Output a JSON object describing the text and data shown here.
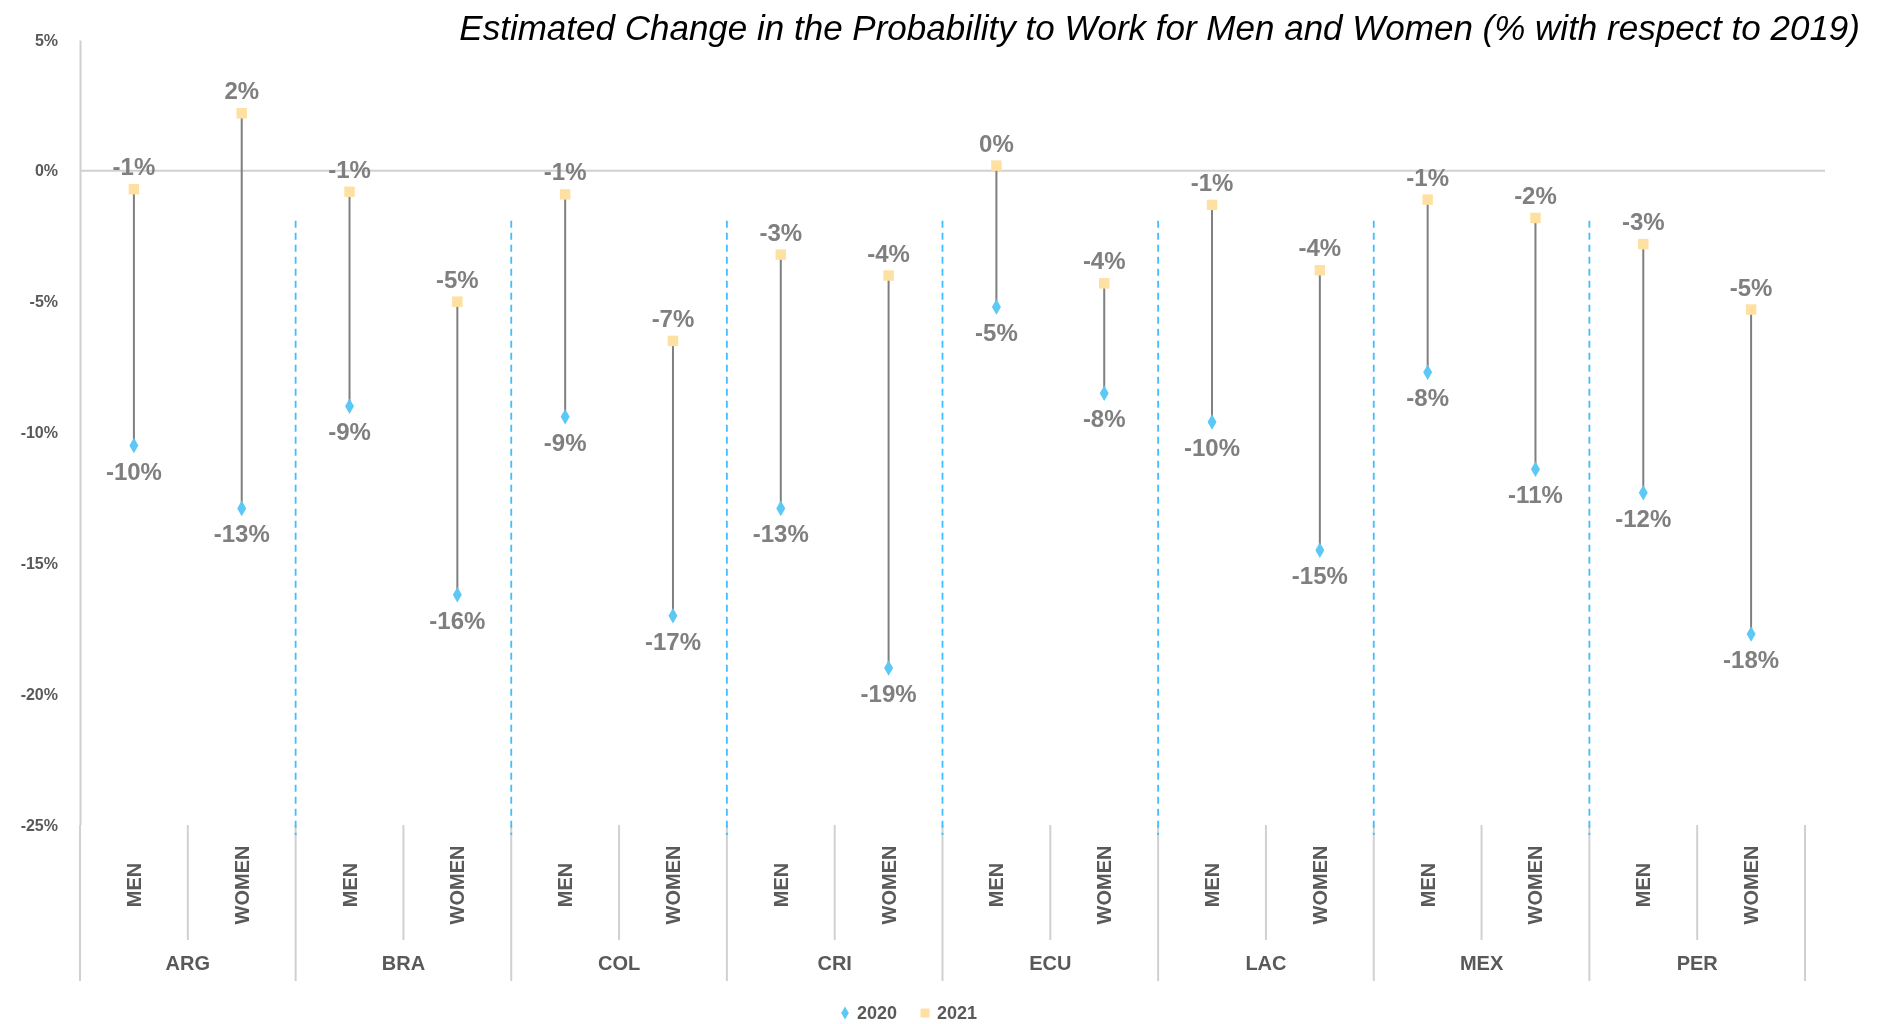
{
  "chart_data": {
    "type": "scatter",
    "title": "Estimated Change in the Probability to Work for Men and Women (% with respect to 2019)",
    "categories": [
      "MEN",
      "WOMEN",
      "MEN",
      "WOMEN",
      "MEN",
      "WOMEN",
      "MEN",
      "WOMEN",
      "MEN",
      "WOMEN",
      "MEN",
      "WOMEN",
      "MEN",
      "WOMEN",
      "MEN",
      "WOMEN"
    ],
    "annotations": [
      "ARG",
      "BRA",
      "COL",
      "CRI",
      "ECU",
      "LAC",
      "MEX",
      "PER"
    ],
    "series": [
      {
        "name": "2020",
        "color": "#5bc8f5",
        "marker": "diamond",
        "values": [
          -10.5,
          -12.9,
          -9.0,
          -16.2,
          -9.4,
          -17.0,
          -12.9,
          -19.0,
          -5.2,
          -8.5,
          -9.6,
          -14.5,
          -7.7,
          -11.4,
          -12.3,
          -17.7
        ],
        "value_labels": [
          "-10%",
          "-13%",
          "-9%",
          "-16%",
          "-9%",
          "-17%",
          "-13%",
          "-19%",
          "-5%",
          "-8%",
          "-10%",
          "-15%",
          "-8%",
          "-11%",
          "-12%",
          "-18%"
        ]
      },
      {
        "name": "2021",
        "color": "#ffe0a3",
        "marker": "square",
        "values": [
          -0.7,
          2.2,
          -0.8,
          -5.0,
          -0.9,
          -6.5,
          -3.2,
          -4.0,
          0.2,
          -4.3,
          -1.3,
          -3.8,
          -1.1,
          -1.8,
          -2.8,
          -5.3
        ],
        "value_labels": [
          "-1%",
          "2%",
          "-1%",
          "-5%",
          "-1%",
          "-7%",
          "-3%",
          "-4%",
          "0%",
          "-4%",
          "-1%",
          "-4%",
          "-1%",
          "-2%",
          "-3%",
          "-5%"
        ]
      }
    ],
    "ylim": [
      -25,
      5
    ],
    "yticks": [
      {
        "value": -25,
        "label": "-25%"
      },
      {
        "value": -20,
        "label": "-20%"
      },
      {
        "value": -15,
        "label": "-15%"
      },
      {
        "value": -10,
        "label": "-10%"
      },
      {
        "value": -5,
        "label": "-5%"
      },
      {
        "value": 0,
        "label": "0%"
      },
      {
        "value": 5,
        "label": "5%"
      }
    ],
    "grid": false,
    "legend": "bottom"
  }
}
